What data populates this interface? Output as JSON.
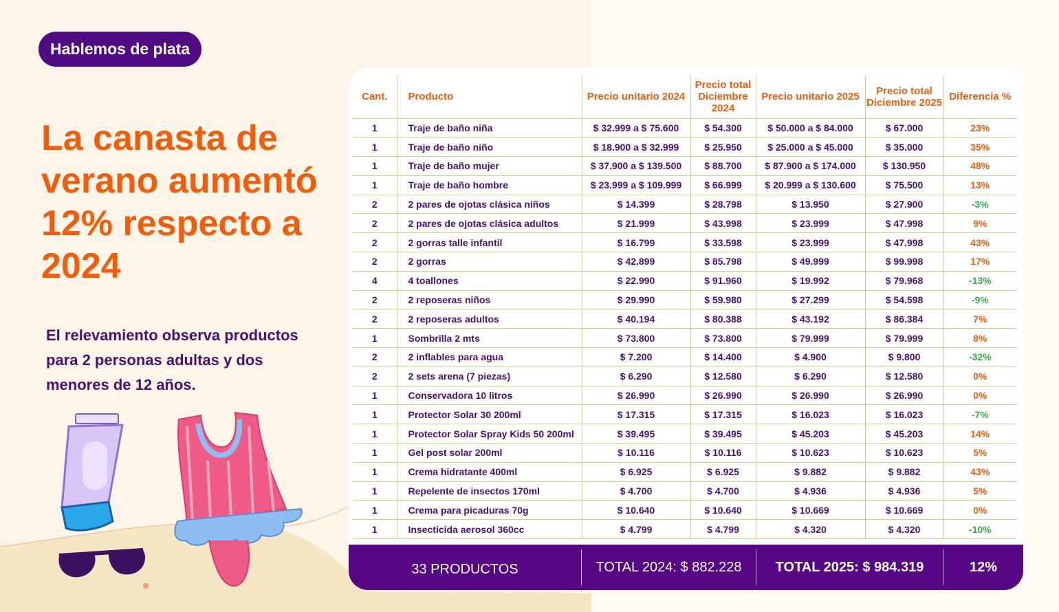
{
  "badge": "Hablemos de plata",
  "headline": "La canasta de verano aumentó 12% respecto a 2024",
  "subtext": "El relevamiento observa productos para 2 personas adultas y dos menores de 12 años.",
  "colors": {
    "orange": "#f25c0a",
    "purple": "#4f0a84",
    "green": "#3aa64a"
  },
  "illustrations": [
    "sunscreen-tube-icon",
    "sunglasses-icon",
    "swimsuit-icon"
  ],
  "table": {
    "headers": {
      "qty": "Cant.",
      "product": "Producto",
      "unit2024": "Precio unitario 2024",
      "total2024": "Precio total Diciembre 2024",
      "unit2025": "Precio unitario 2025",
      "total2025": "Precio total Diciembre 2025",
      "diff": "Diferencia %"
    },
    "rows": [
      {
        "qty": "1",
        "product": "Traje de baño niña",
        "unit2024": "$ 32.999 a $ 75.600",
        "total2024": "$ 54.300",
        "unit2025": "$ 50.000 a $ 84.000",
        "total2025": "$ 67.000",
        "diff": "23%",
        "dir": "pos"
      },
      {
        "qty": "1",
        "product": "Traje de baño niño",
        "unit2024": "$ 18.900 a $ 32.999",
        "total2024": "$ 25.950",
        "unit2025": "$ 25.000 a $ 45.000",
        "total2025": "$ 35.000",
        "diff": "35%",
        "dir": "pos"
      },
      {
        "qty": "1",
        "product": "Traje de baño mujer",
        "unit2024": "$ 37.900 a $ 139.500",
        "total2024": "$ 88.700",
        "unit2025": "$ 87.900 a $ 174.000",
        "total2025": "$ 130.950",
        "diff": "48%",
        "dir": "pos"
      },
      {
        "qty": "1",
        "product": "Traje de baño hombre",
        "unit2024": "$ 23.999 a $ 109.999",
        "total2024": "$ 66.999",
        "unit2025": "$ 20.999 a $ 130.600",
        "total2025": "$ 75.500",
        "diff": "13%",
        "dir": "pos"
      },
      {
        "qty": "2",
        "product": "2 pares de ojotas clásica niños",
        "unit2024": "$ 14.399",
        "total2024": "$ 28.798",
        "unit2025": "$ 13.950",
        "total2025": "$ 27.900",
        "diff": "-3%",
        "dir": "neg"
      },
      {
        "qty": "2",
        "product": "2 pares de ojotas clásica adultos",
        "unit2024": "$ 21.999",
        "total2024": "$ 43.998",
        "unit2025": "$ 23.999",
        "total2025": "$ 47.998",
        "diff": "9%",
        "dir": "pos"
      },
      {
        "qty": "2",
        "product": "2 gorras talle infantil",
        "unit2024": "$ 16.799",
        "total2024": "$ 33.598",
        "unit2025": "$ 23.999",
        "total2025": "$ 47.998",
        "diff": "43%",
        "dir": "pos"
      },
      {
        "qty": "2",
        "product": "2 gorras",
        "unit2024": "$ 42.899",
        "total2024": "$ 85.798",
        "unit2025": "$ 49.999",
        "total2025": "$ 99.998",
        "diff": "17%",
        "dir": "pos"
      },
      {
        "qty": "4",
        "product": "4 toallones",
        "unit2024": "$ 22.990",
        "total2024": "$ 91.960",
        "unit2025": "$ 19.992",
        "total2025": "$ 79.968",
        "diff": "-13%",
        "dir": "neg"
      },
      {
        "qty": "2",
        "product": "2 reposeras niños",
        "unit2024": "$ 29.990",
        "total2024": "$ 59.980",
        "unit2025": "$ 27.299",
        "total2025": "$ 54.598",
        "diff": "-9%",
        "dir": "neg"
      },
      {
        "qty": "2",
        "product": "2 reposeras adultos",
        "unit2024": "$ 40.194",
        "total2024": "$ 80.388",
        "unit2025": "$ 43.192",
        "total2025": "$ 86.384",
        "diff": "7%",
        "dir": "pos"
      },
      {
        "qty": "1",
        "product": "Sombrilla 2 mts",
        "unit2024": "$ 73.800",
        "total2024": "$ 73.800",
        "unit2025": "$ 79.999",
        "total2025": "$ 79.999",
        "diff": "8%",
        "dir": "pos"
      },
      {
        "qty": "2",
        "product": "2 inflables para agua",
        "unit2024": "$ 7.200",
        "total2024": "$ 14.400",
        "unit2025": "$ 4.900",
        "total2025": "$ 9.800",
        "diff": "-32%",
        "dir": "neg"
      },
      {
        "qty": "2",
        "product": "2 sets arena (7 piezas)",
        "unit2024": "$ 6.290",
        "total2024": "$ 12.580",
        "unit2025": "$ 6.290",
        "total2025": "$ 12.580",
        "diff": "0%",
        "dir": "pos"
      },
      {
        "qty": "1",
        "product": "Conservadora 10 litros",
        "unit2024": "$ 26.990",
        "total2024": "$ 26.990",
        "unit2025": "$ 26.990",
        "total2025": "$ 26.990",
        "diff": "0%",
        "dir": "pos"
      },
      {
        "qty": "1",
        "product": "Protector Solar 30 200ml",
        "unit2024": "$ 17.315",
        "total2024": "$ 17.315",
        "unit2025": "$ 16.023",
        "total2025": "$ 16.023",
        "diff": "-7%",
        "dir": "neg"
      },
      {
        "qty": "1",
        "product": "Protector Solar Spray Kids 50 200ml",
        "unit2024": "$ 39.495",
        "total2024": "$ 39.495",
        "unit2025": "$ 45.203",
        "total2025": "$ 45.203",
        "diff": "14%",
        "dir": "pos"
      },
      {
        "qty": "1",
        "product": "Gel post solar 200ml",
        "unit2024": "$ 10.116",
        "total2024": "$ 10.116",
        "unit2025": "$ 10.623",
        "total2025": "$ 10.623",
        "diff": "5%",
        "dir": "pos"
      },
      {
        "qty": "1",
        "product": "Crema hidratante 400ml",
        "unit2024": "$ 6.925",
        "total2024": "$ 6.925",
        "unit2025": "$ 9.882",
        "total2025": "$ 9.882",
        "diff": "43%",
        "dir": "pos"
      },
      {
        "qty": "1",
        "product": "Repelente de insectos 170ml",
        "unit2024": "$ 4.700",
        "total2024": "$ 4.700",
        "unit2025": "$ 4.936",
        "total2025": "$ 4.936",
        "diff": "5%",
        "dir": "pos"
      },
      {
        "qty": "1",
        "product": "Crema para picaduras 70g",
        "unit2024": "$ 10.640",
        "total2024": "$ 10.640",
        "unit2025": "$ 10.669",
        "total2025": "$ 10.669",
        "diff": "0%",
        "dir": "pos"
      },
      {
        "qty": "1",
        "product": "Insecticida aerosol 360cc",
        "unit2024": "$ 4.799",
        "total2024": "$ 4.799",
        "unit2025": "$ 4.320",
        "total2025": "$ 4.320",
        "diff": "-10%",
        "dir": "neg"
      }
    ]
  },
  "footer": {
    "count": "33 PRODUCTOS",
    "total2024": "TOTAL 2024: $  882.228",
    "total2025": "TOTAL 2025: $ 984.319",
    "diff": "12%"
  }
}
